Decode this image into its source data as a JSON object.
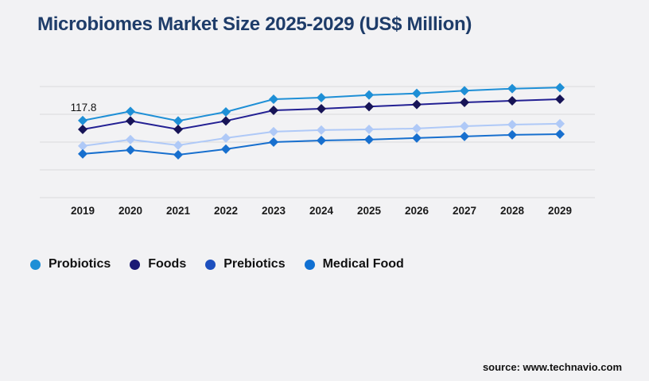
{
  "title": "Microbiomes Market Size 2025-2029 (US$ Million)",
  "source": "source: www.technavio.com",
  "colors": {
    "background": "#F2F2F4",
    "title_text": "#1E3C69",
    "gridline": "#D9D9DD",
    "axis_text": "#1A1A1A",
    "legend_text": "#111111"
  },
  "chart_data": {
    "type": "line",
    "title": "Microbiomes Market Size 2025-2029 (US$ Million)",
    "xlabel": "",
    "ylabel": "",
    "x": [
      "2019",
      "2020",
      "2021",
      "2022",
      "2023",
      "2024",
      "2025",
      "2026",
      "2027",
      "2028",
      "2029"
    ],
    "ylim": [
      45,
      150
    ],
    "grid": "horizontal",
    "gridline_count": 5,
    "legend_position": "bottom-left",
    "marker": "diamond",
    "series": [
      {
        "name": "Probiotics",
        "color": "#1E8FD6",
        "marker_color": "#1E8FD6",
        "legend_color": "#1E8FD6",
        "values": [
          117.8,
          126.5,
          117.5,
          126.0,
          138.0,
          139.5,
          142.0,
          143.5,
          146.0,
          148.0,
          149.0
        ]
      },
      {
        "name": "Foods",
        "color": "#232093",
        "marker_color": "#171457",
        "legend_color": "#1A1975",
        "values": [
          109.5,
          117.5,
          109.5,
          117.5,
          127.5,
          129.0,
          131.0,
          133.0,
          135.0,
          136.5,
          138.0
        ]
      },
      {
        "name": "Prebiotics",
        "color": "#AFC9F7",
        "marker_color": "#AFC9F7",
        "legend_color": "#1D4FBE",
        "values": [
          93.8,
          99.8,
          94.5,
          101.3,
          107.3,
          108.8,
          109.5,
          110.3,
          112.5,
          114.0,
          114.8
        ]
      },
      {
        "name": "Medical Food",
        "color": "#176FCE",
        "marker_color": "#176FCE",
        "legend_color": "#1070D2",
        "values": [
          86.3,
          90.0,
          85.5,
          90.8,
          97.5,
          99.0,
          99.8,
          101.3,
          102.8,
          104.3,
          105.0
        ]
      }
    ],
    "annotations": [
      {
        "series": "Probiotics",
        "x": "2019",
        "label": "117.8"
      }
    ]
  }
}
